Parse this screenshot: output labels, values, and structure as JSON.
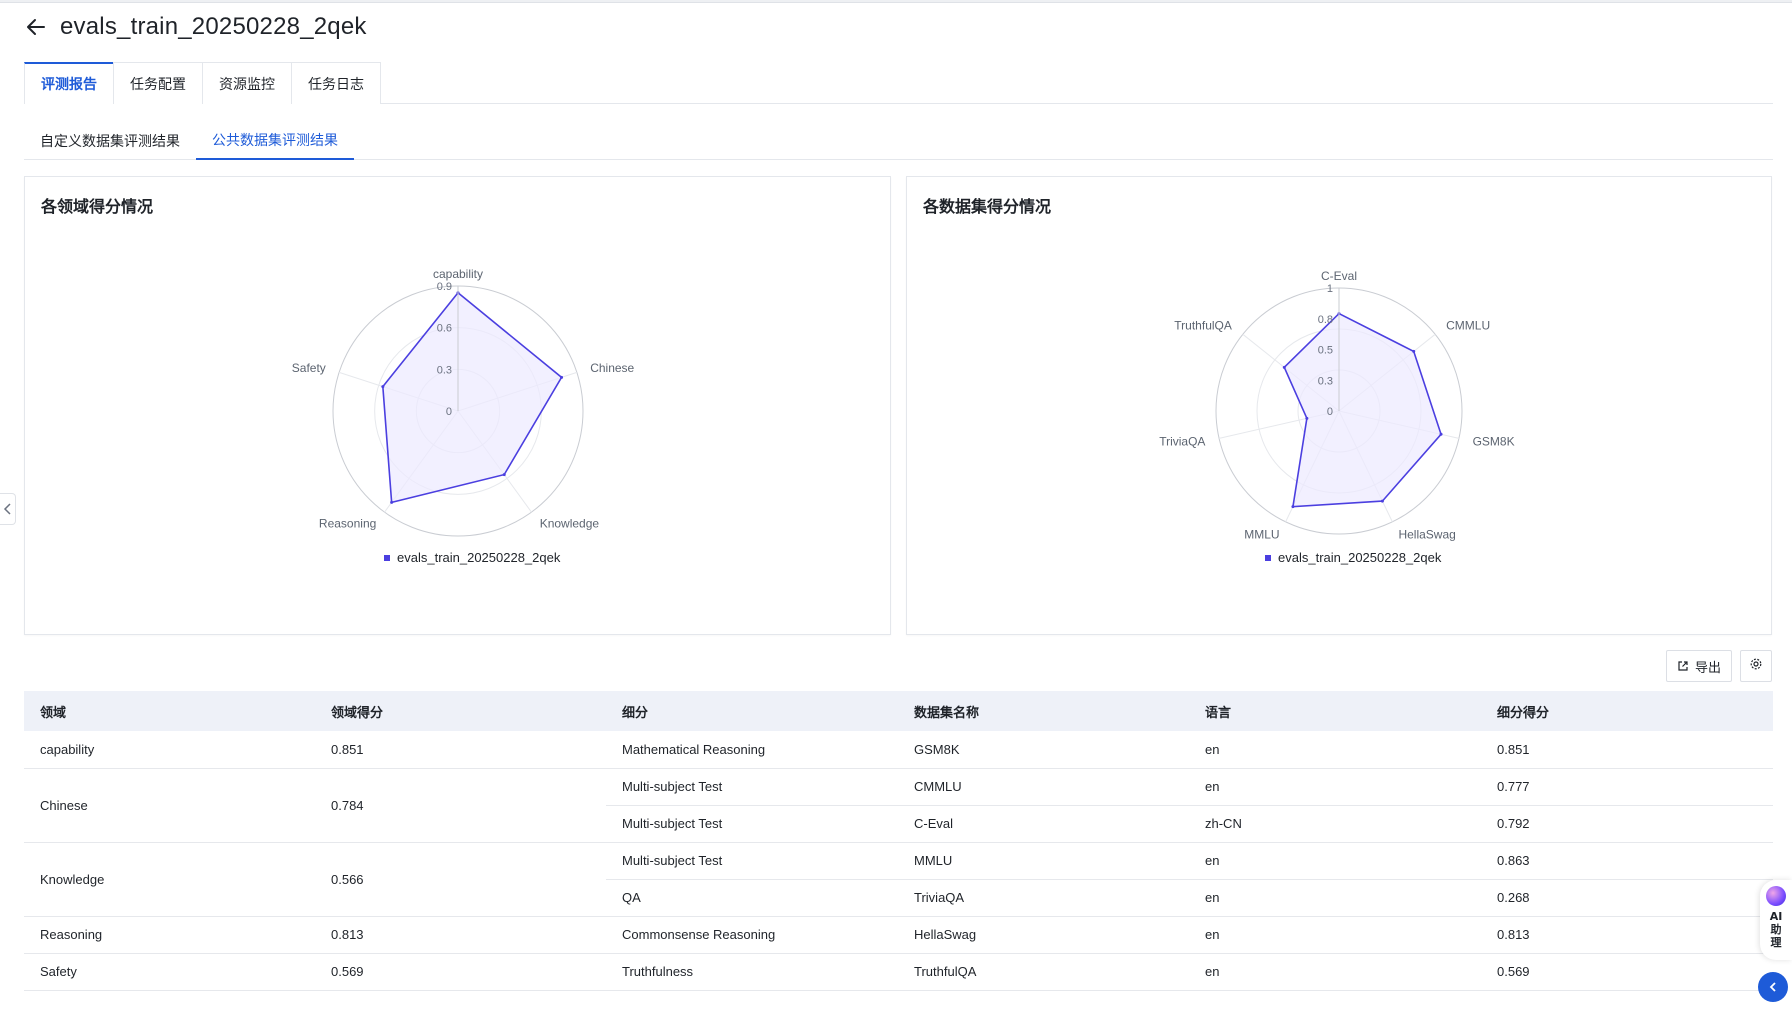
{
  "page": {
    "title": "evals_train_20250228_2qek"
  },
  "tabs": [
    {
      "label": "评测报告",
      "active": true
    },
    {
      "label": "任务配置",
      "active": false
    },
    {
      "label": "资源监控",
      "active": false
    },
    {
      "label": "任务日志",
      "active": false
    }
  ],
  "subtabs": [
    {
      "label": "自定义数据集评测结果",
      "active": false
    },
    {
      "label": "公共数据集评测结果",
      "active": true
    }
  ],
  "colors": {
    "accent": "#1e5bd8",
    "series": "#4b3fe0",
    "series_fill": "#ece9ff",
    "header_bg": "#eef1f8"
  },
  "chart_data": [
    {
      "type": "radar",
      "title": "各领域得分情况",
      "axes": [
        "capability",
        "Chinese",
        "Knowledge",
        "Reasoning",
        "Safety"
      ],
      "ticks": [
        "0",
        "0.3",
        "0.6",
        "0.9"
      ],
      "rmax": 0.9,
      "series": [
        {
          "name": "evals_train_20250228_2qek",
          "values": [
            0.851,
            0.784,
            0.566,
            0.813,
            0.569
          ]
        }
      ],
      "legend": "bottom"
    },
    {
      "type": "radar",
      "title": "各数据集得分情况",
      "axes": [
        "C-Eval",
        "CMMLU",
        "GSM8K",
        "HellaSwag",
        "MMLU",
        "TriviaQA",
        "TruthfulQA"
      ],
      "ticks": [
        "0",
        "0.3",
        "0.5",
        "0.8",
        "1"
      ],
      "rmax": 1,
      "series": [
        {
          "name": "evals_train_20250228_2qek",
          "values": [
            0.792,
            0.777,
            0.851,
            0.813,
            0.863,
            0.268,
            0.569
          ]
        }
      ],
      "legend": "bottom"
    }
  ],
  "toolbar": {
    "export_label": "导出",
    "export_icon": "external-link-icon",
    "settings_icon": "gear-icon"
  },
  "table": {
    "headers": [
      "领域",
      "领域得分",
      "细分",
      "数据集名称",
      "语言",
      "细分得分"
    ],
    "groups": [
      {
        "domain": "capability",
        "score": "0.851",
        "rows": [
          [
            "Mathematical Reasoning",
            "GSM8K",
            "en",
            "0.851"
          ]
        ]
      },
      {
        "domain": "Chinese",
        "score": "0.784",
        "rows": [
          [
            "Multi-subject Test",
            "CMMLU",
            "en",
            "0.777"
          ],
          [
            "Multi-subject Test",
            "C-Eval",
            "zh-CN",
            "0.792"
          ]
        ]
      },
      {
        "domain": "Knowledge",
        "score": "0.566",
        "rows": [
          [
            "Multi-subject Test",
            "MMLU",
            "en",
            "0.863"
          ],
          [
            "QA",
            "TriviaQA",
            "en",
            "0.268"
          ]
        ]
      },
      {
        "domain": "Reasoning",
        "score": "0.813",
        "rows": [
          [
            "Commonsense Reasoning",
            "HellaSwag",
            "en",
            "0.813"
          ]
        ]
      },
      {
        "domain": "Safety",
        "score": "0.569",
        "rows": [
          [
            "Truthfulness",
            "TruthfulQA",
            "en",
            "0.569"
          ]
        ]
      }
    ]
  },
  "assistant": {
    "label": "AI助理"
  }
}
